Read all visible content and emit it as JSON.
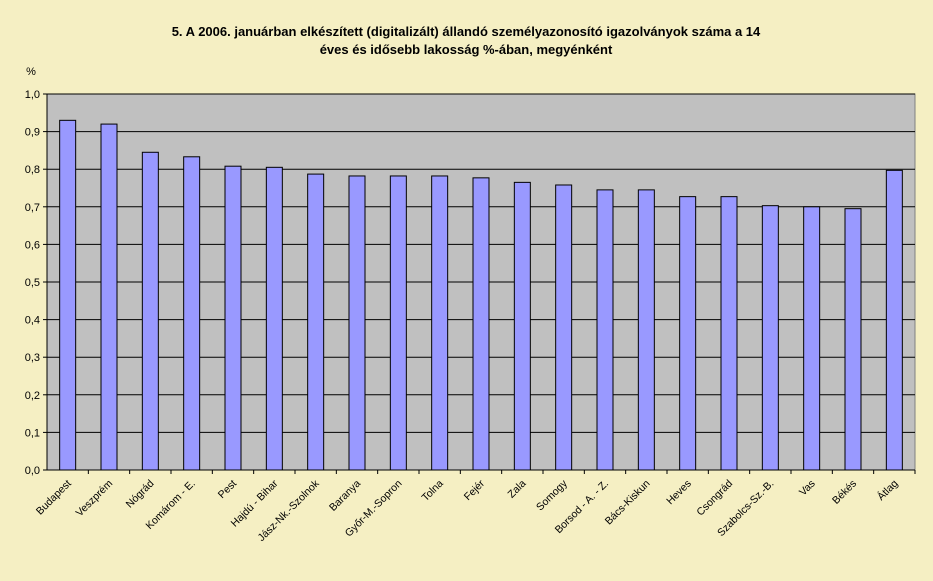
{
  "chart_data": {
    "type": "bar",
    "title_line1": "5. A 2006. januárban elkészített (digitalizált) állandó személyazonosító igazolványok száma a 14",
    "title_line2": "éves és idősebb lakosság %-ában, megyénként",
    "ylabel": "%",
    "ylim": [
      0,
      1.0
    ],
    "yticks": [
      "0,0",
      "0,1",
      "0,2",
      "0,3",
      "0,4",
      "0,5",
      "0,6",
      "0,7",
      "0,8",
      "0,9",
      "1,0"
    ],
    "grid": true,
    "legend": "none",
    "categories": [
      "Budapest",
      "Veszprém",
      "Nógrád",
      "Komárom - E.",
      "Pest",
      "Hajdú - Bihar",
      "Jász-Nk.-Szolnok",
      "Baranya",
      "Győr-M.-Sopron",
      "Tolna",
      "Fejér",
      "Zala",
      "Somogy",
      "Borsod - A. - Z.",
      "Bács-Kiskun",
      "Heves",
      "Csongrád",
      "Szabolcs-Sz.-B.",
      "Vas",
      "Békés",
      "Átlag"
    ],
    "values": [
      0.93,
      0.92,
      0.845,
      0.833,
      0.808,
      0.805,
      0.787,
      0.782,
      0.782,
      0.782,
      0.777,
      0.765,
      0.758,
      0.745,
      0.745,
      0.727,
      0.727,
      0.703,
      0.7,
      0.695,
      0.797
    ],
    "colors": {
      "bar_fill": "#9999ff",
      "bar_stroke": "#000000",
      "plot_bg": "#c0c0c0",
      "page_bg": "#f5efc3",
      "grid": "#000000"
    }
  }
}
